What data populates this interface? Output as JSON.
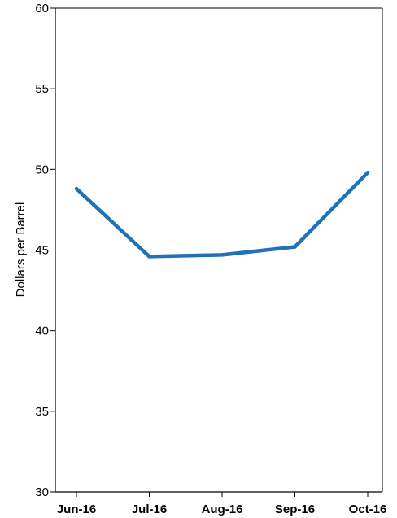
{
  "chart_data": {
    "type": "line",
    "title": "",
    "xlabel": "",
    "ylabel": "Dollars per Barrel",
    "categories": [
      "Jun-16",
      "Jul-16",
      "Aug-16",
      "Sep-16",
      "Oct-16"
    ],
    "series": [
      {
        "name": "",
        "values": [
          48.8,
          44.6,
          44.7,
          45.2,
          49.8
        ],
        "color": "#2171b5"
      }
    ],
    "ylim": [
      30,
      60
    ],
    "yticks": [
      "30",
      "35",
      "40",
      "45",
      "50",
      "55",
      "60"
    ],
    "grid": false,
    "legend": "none"
  }
}
